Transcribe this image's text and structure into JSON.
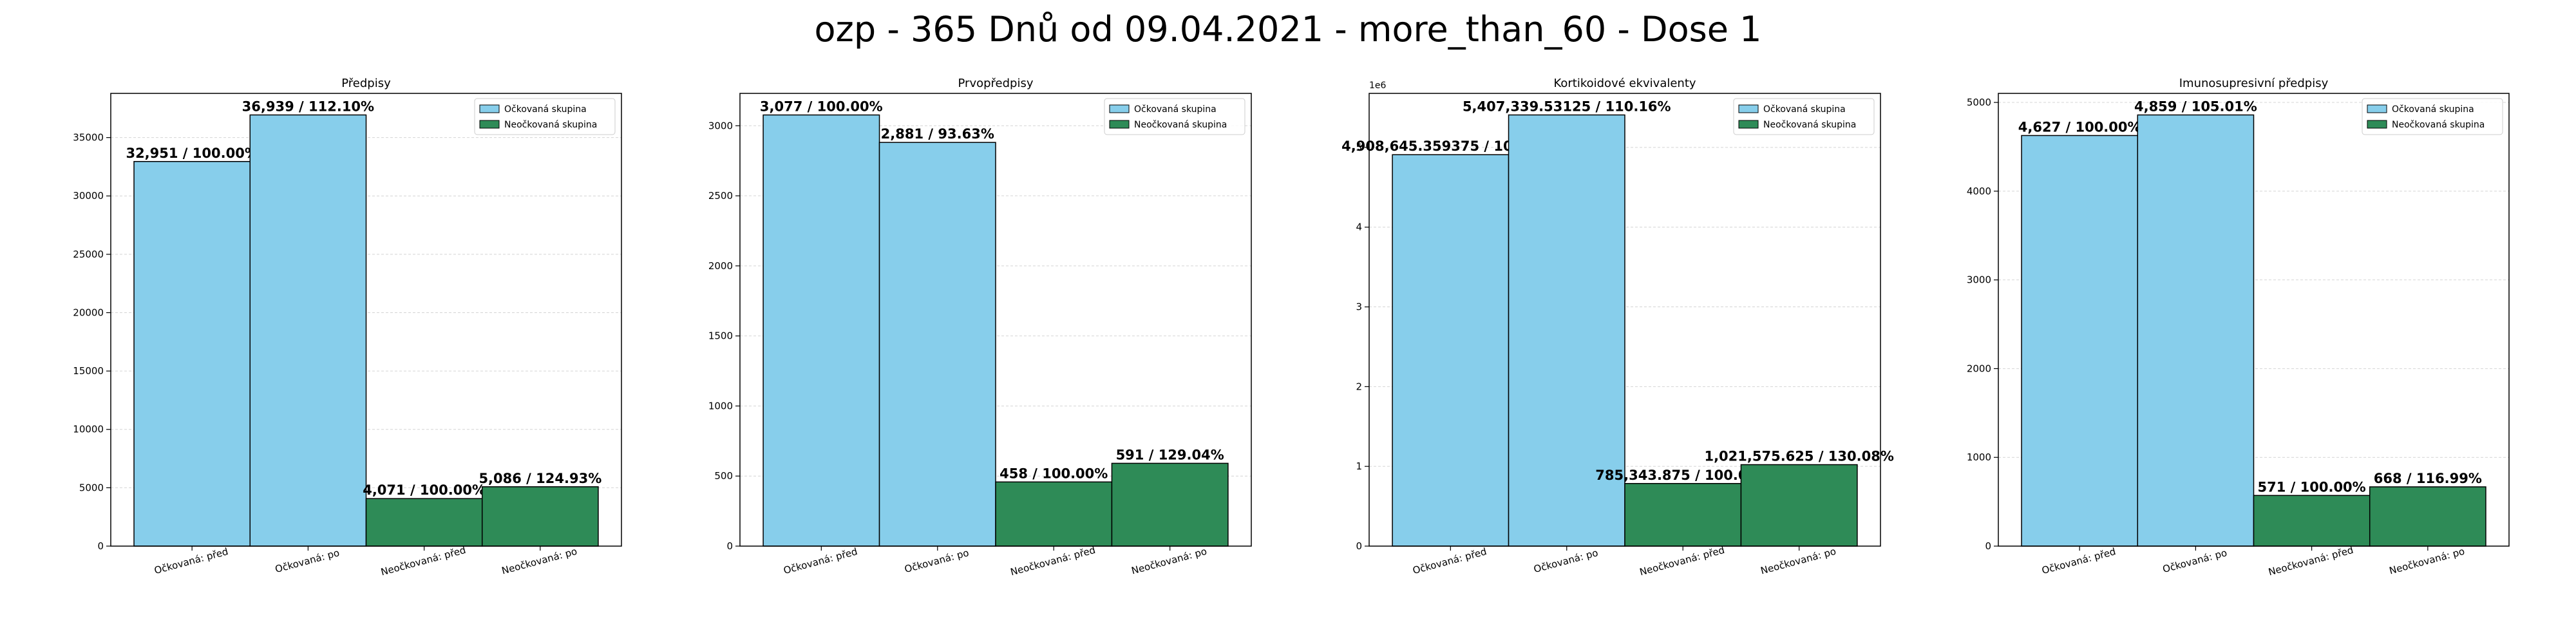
{
  "suptitle": "ozp - 365 Dnů od 09.04.2021 - more_than_60 - Dose 1",
  "colors": {
    "vaccinated": "#87CEEB",
    "unvaccinated": "#2E8B57",
    "edge": "#000000",
    "grid": "#b0b0b0"
  },
  "chart_data": [
    {
      "type": "bar",
      "title": "Předpisy",
      "categories": [
        "Očkovaná: před",
        "Očkovaná: po",
        "Neočkovaná: před",
        "Neočkovaná: po"
      ],
      "values": [
        32951,
        36939,
        4071,
        5086
      ],
      "groups": [
        "vaccinated",
        "vaccinated",
        "unvaccinated",
        "unvaccinated"
      ],
      "bar_labels": [
        "32,951 / 100.00%",
        "36,939 / 112.10%",
        "4,071 / 100.00%",
        "5,086 / 124.93%"
      ],
      "ylim": [
        0,
        38786
      ],
      "yticks": [
        0,
        5000,
        10000,
        15000,
        20000,
        25000,
        30000,
        35000
      ],
      "ytick_labels": [
        "0",
        "5000",
        "10000",
        "15000",
        "20000",
        "25000",
        "30000",
        "35000"
      ],
      "y_offset_text": "",
      "legend": [
        "Očkovaná skupina",
        "Neočkovaná skupina"
      ],
      "legend_loc": "upper right",
      "grid": "y"
    },
    {
      "type": "bar",
      "title": "Prvopředpisy",
      "categories": [
        "Očkovaná: před",
        "Očkovaná: po",
        "Neočkovaná: před",
        "Neočkovaná: po"
      ],
      "values": [
        3077,
        2881,
        458,
        591
      ],
      "groups": [
        "vaccinated",
        "vaccinated",
        "unvaccinated",
        "unvaccinated"
      ],
      "bar_labels": [
        "3,077 / 100.00%",
        "2,881 / 93.63%",
        "458 / 100.00%",
        "591 / 129.04%"
      ],
      "ylim": [
        0,
        3231
      ],
      "yticks": [
        0,
        500,
        1000,
        1500,
        2000,
        2500,
        3000
      ],
      "ytick_labels": [
        "0",
        "500",
        "1000",
        "1500",
        "2000",
        "2500",
        "3000"
      ],
      "y_offset_text": "",
      "legend": [
        "Očkovaná skupina",
        "Neočkovaná skupina"
      ],
      "legend_loc": "upper right",
      "grid": "y"
    },
    {
      "type": "bar",
      "title": "Kortikoidové ekvivalenty",
      "categories": [
        "Očkovaná: před",
        "Očkovaná: po",
        "Neočkovaná: před",
        "Neočkovaná: po"
      ],
      "values": [
        4908645.359375,
        5407339.53125,
        785343.875,
        1021575.625
      ],
      "groups": [
        "vaccinated",
        "vaccinated",
        "unvaccinated",
        "unvaccinated"
      ],
      "bar_labels": [
        "4,908,645.359375 / 100.00%",
        "5,407,339.53125 / 110.16%",
        "785,343.875 / 100.00%",
        "1,021,575.625 / 130.08%"
      ],
      "ylim": [
        0,
        5677700
      ],
      "yticks": [
        0,
        1000000,
        2000000,
        3000000,
        4000000,
        5000000
      ],
      "ytick_labels": [
        "0",
        "1",
        "2",
        "3",
        "4",
        "5"
      ],
      "y_offset_text": "1e6",
      "legend": [
        "Očkovaná skupina",
        "Neočkovaná skupina"
      ],
      "legend_loc": "upper right",
      "grid": "y"
    },
    {
      "type": "bar",
      "title": "Imunosupresivní předpisy",
      "categories": [
        "Očkovaná: před",
        "Očkovaná: po",
        "Neočkovaná: před",
        "Neočkovaná: po"
      ],
      "values": [
        4627,
        4859,
        571,
        668
      ],
      "groups": [
        "vaccinated",
        "vaccinated",
        "unvaccinated",
        "unvaccinated"
      ],
      "bar_labels": [
        "4,627 / 100.00%",
        "4,859 / 105.01%",
        "571 / 100.00%",
        "668 / 116.99%"
      ],
      "ylim": [
        0,
        5102
      ],
      "yticks": [
        0,
        1000,
        2000,
        3000,
        4000,
        5000
      ],
      "ytick_labels": [
        "0",
        "1000",
        "2000",
        "3000",
        "4000",
        "5000"
      ],
      "y_offset_text": "",
      "legend": [
        "Očkovaná skupina",
        "Neočkovaná skupina"
      ],
      "legend_loc": "upper right",
      "grid": "y"
    }
  ]
}
